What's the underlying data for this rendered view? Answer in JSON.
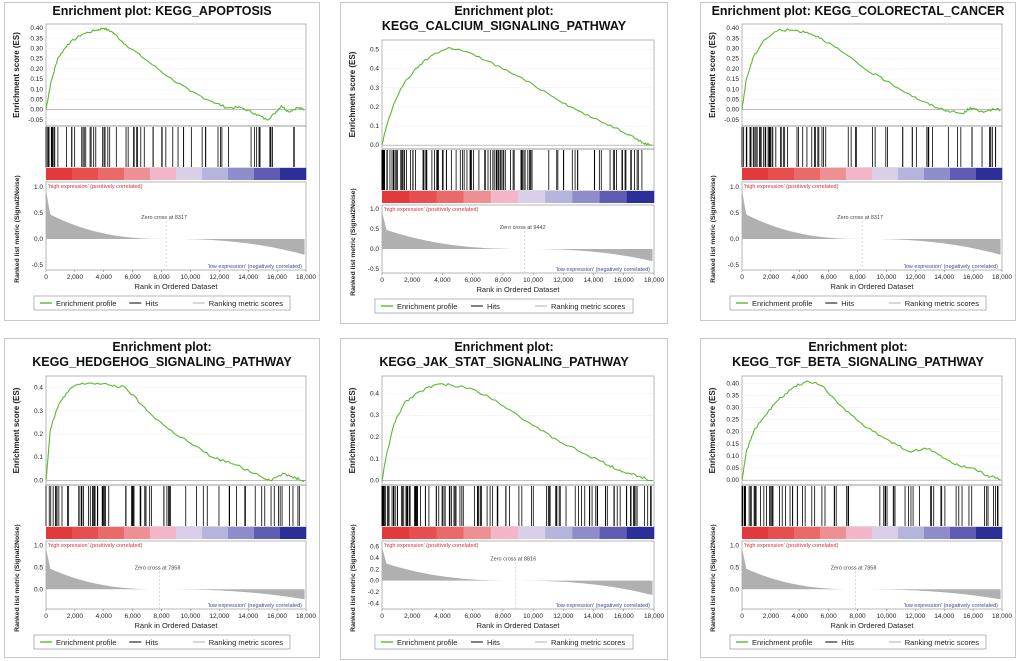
{
  "common": {
    "es_axis_label": "Enrichment score (ES)",
    "metric_axis_label": "Ranked list metric (Signal2Noise)",
    "x_axis_label": "Rank in Ordered Dataset",
    "x_ticks": [
      "0",
      "2,000",
      "4,000",
      "6,000",
      "8,000",
      "10,000",
      "12,000",
      "14,000",
      "16,000",
      "18,000"
    ],
    "high_label": "'high expression' (positively correlated)",
    "low_label": "'low expression' (negatively correlated)",
    "legend": [
      "Enrichment profile",
      "Hits",
      "Ranking metric scores"
    ],
    "colors": {
      "profile": "#5cb82e",
      "hits": "#000000",
      "metric": "#b0b0b0",
      "high": "#d42a2a",
      "low": "#2a2f8c"
    }
  },
  "chart_data": [
    {
      "type": "line",
      "title": [
        "Enrichment plot: KEGG_APOPTOSIS"
      ],
      "es_ticks": [
        "0.40",
        "0.35",
        "0.30",
        "0.25",
        "0.20",
        "0.15",
        "0.10",
        "0.05",
        "0.00",
        "-0.05"
      ],
      "es_range": [
        -0.08,
        0.42
      ],
      "metric_ticks": [
        "1.0",
        "0.5",
        "0.0",
        "-0.5"
      ],
      "metric_range": [
        -0.6,
        1.1
      ],
      "zero_cross_label": "Zero cross at 8317",
      "zero_cross": 8317,
      "profile": [
        [
          0,
          0
        ],
        [
          300,
          0.12
        ],
        [
          800,
          0.25
        ],
        [
          1500,
          0.32
        ],
        [
          2500,
          0.37
        ],
        [
          3500,
          0.39
        ],
        [
          4000,
          0.4
        ],
        [
          4600,
          0.38
        ],
        [
          5500,
          0.32
        ],
        [
          7000,
          0.24
        ],
        [
          8500,
          0.16
        ],
        [
          10000,
          0.09
        ],
        [
          11500,
          0.04
        ],
        [
          12500,
          0.01
        ],
        [
          13500,
          0.01
        ],
        [
          14500,
          -0.02
        ],
        [
          15300,
          -0.05
        ],
        [
          15800,
          -0.02
        ],
        [
          16300,
          0.02
        ],
        [
          16800,
          -0.01
        ],
        [
          17400,
          0.01
        ],
        [
          17900,
          0.0
        ]
      ],
      "hits_density": "high",
      "zero_metric": 0.0
    },
    {
      "type": "line",
      "title": [
        "Enrichment plot:",
        "KEGG_CALCIUM_SIGNALING_PATHWAY"
      ],
      "es_ticks": [
        "0.5",
        "0.4",
        "0.3",
        "0.2",
        "0.1",
        "0.0"
      ],
      "es_range": [
        -0.02,
        0.55
      ],
      "metric_ticks": [
        "1.0",
        "0.5",
        "0.0",
        "-0.5"
      ],
      "metric_range": [
        -0.6,
        1.1
      ],
      "zero_cross_label": "Zero cross at 9442",
      "zero_cross": 9442,
      "profile": [
        [
          0,
          0
        ],
        [
          300,
          0.1
        ],
        [
          800,
          0.22
        ],
        [
          1500,
          0.33
        ],
        [
          2500,
          0.42
        ],
        [
          3500,
          0.48
        ],
        [
          4500,
          0.51
        ],
        [
          5500,
          0.49
        ],
        [
          7000,
          0.44
        ],
        [
          9000,
          0.36
        ],
        [
          11000,
          0.27
        ],
        [
          12500,
          0.2
        ],
        [
          14000,
          0.14
        ],
        [
          15500,
          0.09
        ],
        [
          16500,
          0.05
        ],
        [
          17300,
          0.01
        ],
        [
          17900,
          0.0
        ]
      ],
      "hits_density": "dense",
      "zero_metric": 0.0
    },
    {
      "type": "line",
      "title": [
        "Enrichment plot: KEGG_COLORECTAL_CANCER"
      ],
      "es_ticks": [
        "0.40",
        "0.35",
        "0.30",
        "0.25",
        "0.20",
        "0.15",
        "0.10",
        "0.05",
        "0.00",
        "-0.05"
      ],
      "es_range": [
        -0.08,
        0.42
      ],
      "metric_ticks": [
        "1.0",
        "0.5",
        "0.0",
        "-0.5"
      ],
      "metric_range": [
        -0.6,
        1.1
      ],
      "zero_cross_label": "Zero cross at 8317",
      "zero_cross": 8317,
      "profile": [
        [
          0,
          0
        ],
        [
          300,
          0.15
        ],
        [
          800,
          0.26
        ],
        [
          1500,
          0.34
        ],
        [
          2500,
          0.39
        ],
        [
          3500,
          0.39
        ],
        [
          4500,
          0.38
        ],
        [
          5500,
          0.35
        ],
        [
          7000,
          0.28
        ],
        [
          8500,
          0.2
        ],
        [
          10000,
          0.14
        ],
        [
          11500,
          0.08
        ],
        [
          12500,
          0.04
        ],
        [
          13500,
          0.01
        ],
        [
          14500,
          -0.01
        ],
        [
          15300,
          -0.02
        ],
        [
          15800,
          0.01
        ],
        [
          16500,
          -0.01
        ],
        [
          17300,
          0.0
        ],
        [
          17900,
          0.0
        ]
      ],
      "hits_density": "medium",
      "zero_metric": 0.0
    },
    {
      "type": "line",
      "title": [
        "Enrichment plot:",
        "KEGG_HEDGEHOG_SIGNALING_PATHWAY"
      ],
      "es_ticks": [
        "0.4",
        "0.3",
        "0.2",
        "0.1",
        "0.0"
      ],
      "es_range": [
        -0.02,
        0.45
      ],
      "metric_ticks": [
        "1.0",
        "0.5",
        "0.0"
      ],
      "metric_range": [
        -0.45,
        1.1
      ],
      "zero_cross_label": "Zero cross at 7858",
      "zero_cross": 7858,
      "profile": [
        [
          0,
          0
        ],
        [
          300,
          0.22
        ],
        [
          700,
          0.3
        ],
        [
          1200,
          0.36
        ],
        [
          2000,
          0.41
        ],
        [
          3000,
          0.42
        ],
        [
          4500,
          0.41
        ],
        [
          5500,
          0.4
        ],
        [
          7000,
          0.3
        ],
        [
          8500,
          0.22
        ],
        [
          10000,
          0.16
        ],
        [
          11500,
          0.1
        ],
        [
          13000,
          0.07
        ],
        [
          14500,
          0.03
        ],
        [
          15500,
          0.0
        ],
        [
          16500,
          0.03
        ],
        [
          17300,
          0.01
        ],
        [
          17900,
          0.0
        ]
      ],
      "hits_density": "medium",
      "zero_metric": 0.0
    },
    {
      "type": "line",
      "title": [
        "Enrichment plot:",
        "KEGG_JAK_STAT_SIGNALING_PATHWAY"
      ],
      "es_ticks": [
        "0.4",
        "0.3",
        "0.2",
        "0.1",
        "0.0"
      ],
      "es_range": [
        -0.02,
        0.48
      ],
      "metric_ticks": [
        "0.6",
        "0.4",
        "0.2",
        "0.0",
        "-0.2",
        "-0.4"
      ],
      "metric_range": [
        -0.5,
        0.7
      ],
      "zero_cross_label": "Zero cross at 8816",
      "zero_cross": 8816,
      "profile": [
        [
          0,
          0
        ],
        [
          300,
          0.12
        ],
        [
          800,
          0.26
        ],
        [
          1500,
          0.36
        ],
        [
          2500,
          0.41
        ],
        [
          3500,
          0.44
        ],
        [
          4500,
          0.44
        ],
        [
          6000,
          0.42
        ],
        [
          7500,
          0.37
        ],
        [
          9000,
          0.3
        ],
        [
          10500,
          0.23
        ],
        [
          12000,
          0.17
        ],
        [
          13500,
          0.12
        ],
        [
          15000,
          0.07
        ],
        [
          16000,
          0.04
        ],
        [
          17000,
          0.02
        ],
        [
          17900,
          0.0
        ]
      ],
      "hits_density": "dense",
      "zero_metric": 0.0
    },
    {
      "type": "line",
      "title": [
        "Enrichment plot:",
        "KEGG_TGF_BETA_SIGNALING_PATHWAY"
      ],
      "es_ticks": [
        "0.40",
        "0.35",
        "0.30",
        "0.25",
        "0.20",
        "0.15",
        "0.10",
        "0.05",
        "0.00"
      ],
      "es_range": [
        -0.02,
        0.43
      ],
      "metric_ticks": [
        "1.0",
        "0.5",
        "0.0"
      ],
      "metric_range": [
        -0.45,
        1.1
      ],
      "zero_cross_label": "Zero cross at 7858",
      "zero_cross": 7858,
      "profile": [
        [
          0,
          0
        ],
        [
          300,
          0.12
        ],
        [
          800,
          0.2
        ],
        [
          1500,
          0.26
        ],
        [
          2500,
          0.33
        ],
        [
          3500,
          0.38
        ],
        [
          4500,
          0.41
        ],
        [
          5500,
          0.39
        ],
        [
          7000,
          0.3
        ],
        [
          8500,
          0.22
        ],
        [
          10000,
          0.17
        ],
        [
          11500,
          0.12
        ],
        [
          13000,
          0.13
        ],
        [
          14000,
          0.09
        ],
        [
          15000,
          0.06
        ],
        [
          16000,
          0.05
        ],
        [
          17000,
          0.02
        ],
        [
          17900,
          0.0
        ]
      ],
      "hits_density": "medium",
      "zero_metric": 0.0
    }
  ]
}
